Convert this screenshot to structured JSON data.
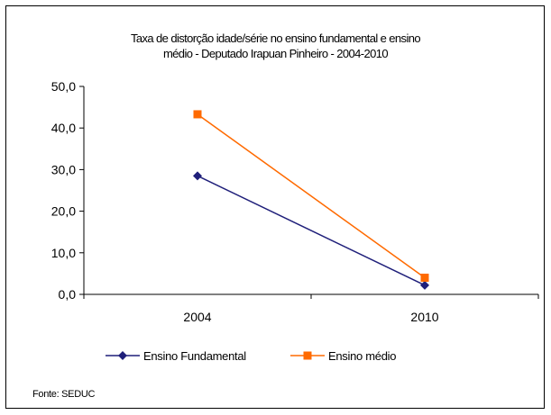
{
  "chart_data": {
    "type": "line",
    "title_lines": [
      "Taxa de distorção idade/série no ensino fundamental e ensino",
      "médio - Deputado Irapuan Pinheiro - 2004-2010"
    ],
    "xlabel": "",
    "ylabel": "",
    "categories": [
      "2004",
      "2010"
    ],
    "ylim": [
      0,
      50
    ],
    "y_ticks": [
      "0,0",
      "10,0",
      "20,0",
      "30,0",
      "40,0",
      "50,0"
    ],
    "grid": false,
    "legend_position": "bottom",
    "series": [
      {
        "name": "Ensino Fundamental",
        "values": [
          28.5,
          2.2
        ],
        "color": "#1f1f7a",
        "marker": "diamond"
      },
      {
        "name": "Ensino médio",
        "values": [
          43.3,
          4.0
        ],
        "color": "#ff6a00",
        "marker": "square"
      }
    ]
  },
  "source_note": "Fonte: SEDUC"
}
